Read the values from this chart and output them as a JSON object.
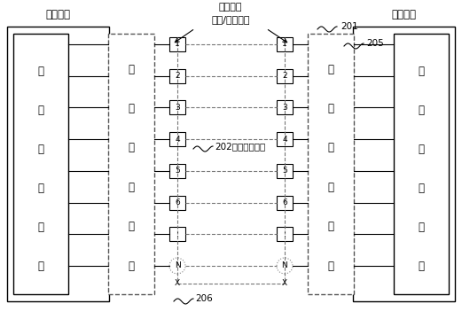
{
  "title_left": "集成电路",
  "title_right": "集成电路",
  "title_center_line1": "集成电路",
  "title_center_line2": "输入/输出接口",
  "label_201": "201",
  "label_205": "205",
  "label_202": "202片外电气连接",
  "label_206": "206",
  "left_inner_text": [
    "内",
    "部",
    "功",
    "能",
    "电",
    "路"
  ],
  "right_inner_text": [
    "内",
    "部",
    "功",
    "能",
    "电",
    "路"
  ],
  "left_encoder_text": [
    "编",
    "码",
    "解",
    "码",
    "电",
    "路"
  ],
  "right_encoder_text": [
    "编",
    "码",
    "解",
    "码",
    "电",
    "路"
  ],
  "pin_labels": [
    "1",
    "2",
    "3",
    "4",
    "5",
    "6",
    ":",
    "N"
  ],
  "bg_color": "#ffffff",
  "lw_main": 1.0,
  "lw_thin": 0.8
}
